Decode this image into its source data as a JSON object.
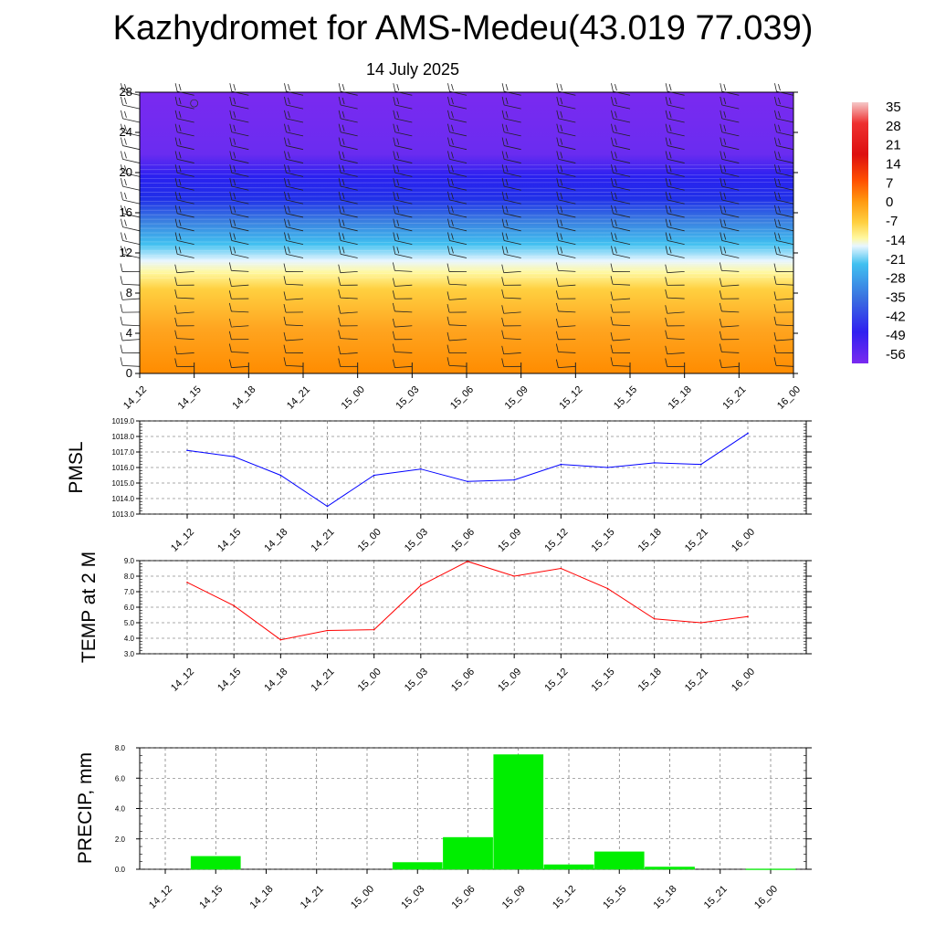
{
  "header": {
    "title": "Kazhydromet for AMS-Medeu(43.019 77.039)",
    "date": "14 July 2025"
  },
  "colors": {
    "pmsl_line": "#0000ff",
    "temp_line": "#ff0000",
    "precip_bar": "#00ee00",
    "grid": "#000000"
  },
  "chart_data": [
    {
      "type": "heatmap",
      "name": "upper-air-temperature-cross-section",
      "x_categories": [
        "14_12",
        "14_15",
        "14_18",
        "14_21",
        "15_00",
        "15_03",
        "15_06",
        "15_09",
        "15_12",
        "15_15",
        "15_18",
        "15_21",
        "16_00"
      ],
      "y_ticks": [
        0,
        4,
        8,
        12,
        16,
        20,
        24,
        28
      ],
      "ylim": [
        0,
        28
      ],
      "colorbar_labels": [
        35,
        28,
        21,
        14,
        7,
        0,
        -7,
        -14,
        -21,
        -28,
        -35,
        -42,
        -49,
        -56
      ],
      "has_wind_barbs": true
    },
    {
      "type": "line",
      "name": "pmsl",
      "ylabel": "PMSL",
      "categories": [
        "14_12",
        "14_15",
        "14_18",
        "14_21",
        "15_00",
        "15_03",
        "15_06",
        "15_09",
        "15_12",
        "15_15",
        "15_18",
        "15_21",
        "16_00"
      ],
      "values": [
        1017.1,
        1016.7,
        1015.5,
        1013.5,
        1015.5,
        1015.9,
        1015.1,
        1015.2,
        1016.2,
        1016.0,
        1016.3,
        1016.2,
        1018.2
      ],
      "ylim": [
        1013.0,
        1019.0
      ],
      "yticks": [
        "1013.0",
        "1014.0",
        "1015.0",
        "1016.0",
        "1017.0",
        "1018.0",
        "1019.0"
      ],
      "grid": true
    },
    {
      "type": "line",
      "name": "temp-2m",
      "ylabel": "TEMP at 2 M",
      "categories": [
        "14_12",
        "14_15",
        "14_18",
        "14_21",
        "15_00",
        "15_03",
        "15_06",
        "15_09",
        "15_12",
        "15_15",
        "15_18",
        "15_21",
        "16_00"
      ],
      "values": [
        7.6,
        6.1,
        3.9,
        4.5,
        4.55,
        7.4,
        8.95,
        8.0,
        8.5,
        7.2,
        5.25,
        5.0,
        5.4
      ],
      "ylim": [
        3.0,
        9.0
      ],
      "yticks": [
        "3.0",
        "4.0",
        "5.0",
        "6.0",
        "7.0",
        "8.0",
        "9.0"
      ],
      "grid": true
    },
    {
      "type": "bar",
      "name": "precip",
      "ylabel": "PRECIP, mm",
      "categories": [
        "14_12",
        "14_15",
        "14_18",
        "14_21",
        "15_00",
        "15_03",
        "15_06",
        "15_09",
        "15_12",
        "15_15",
        "15_18",
        "15_21",
        "16_00"
      ],
      "values": [
        0,
        0.85,
        0,
        0,
        0,
        0.45,
        2.1,
        7.55,
        0.3,
        1.15,
        0.15,
        0,
        0.02
      ],
      "ylim": [
        0,
        8.0
      ],
      "yticks": [
        "0.0",
        "2.0",
        "4.0",
        "6.0",
        "8.0"
      ],
      "grid": true
    }
  ]
}
